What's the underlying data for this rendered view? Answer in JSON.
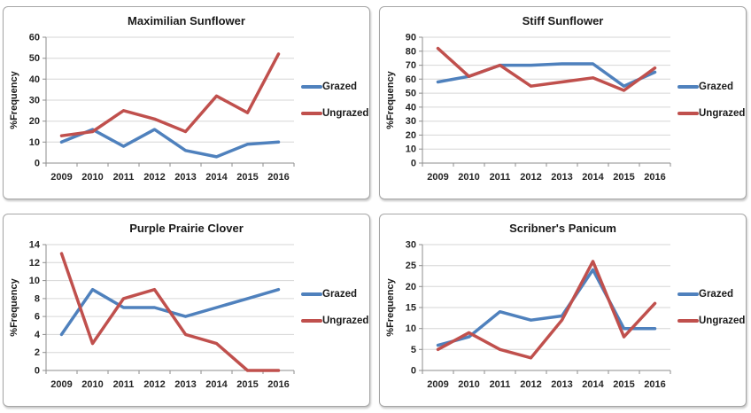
{
  "colors": {
    "grazed": "#4F81BD",
    "ungrazed": "#C0504D",
    "gridline": "#D6D6D6",
    "axis": "#8E8E8E",
    "tick_text": "#262626",
    "title_text": "#1A1A1A",
    "panel_border": "#A6A6A6"
  },
  "chart_data": [
    {
      "type": "line",
      "title": "Maximilian Sunflower",
      "xlabel": "",
      "ylabel": "%Frequency",
      "categories": [
        "2009",
        "2010",
        "2011",
        "2012",
        "2013",
        "2014",
        "2015",
        "2016"
      ],
      "ylim": [
        0,
        60
      ],
      "ystep": 10,
      "grid": true,
      "legend_position": "right",
      "series": [
        {
          "name": "Grazed",
          "color": "#4F81BD",
          "values": [
            10,
            16,
            8,
            16,
            6,
            3,
            9,
            10
          ]
        },
        {
          "name": "Ungrazed",
          "color": "#C0504D",
          "values": [
            13,
            15,
            25,
            21,
            15,
            32,
            24,
            52
          ]
        }
      ]
    },
    {
      "type": "line",
      "title": "Stiff Sunflower",
      "xlabel": "",
      "ylabel": "%Frequency",
      "categories": [
        "2009",
        "2010",
        "2011",
        "2012",
        "2013",
        "2014",
        "2015",
        "2016"
      ],
      "ylim": [
        0,
        90
      ],
      "ystep": 10,
      "grid": true,
      "legend_position": "right",
      "series": [
        {
          "name": "Grazed",
          "color": "#4F81BD",
          "values": [
            58,
            62,
            70,
            70,
            71,
            71,
            55,
            65
          ]
        },
        {
          "name": "Ungrazed",
          "color": "#C0504D",
          "values": [
            82,
            62,
            70,
            55,
            58,
            61,
            52,
            68
          ]
        }
      ]
    },
    {
      "type": "line",
      "title": "Purple Prairie Clover",
      "xlabel": "",
      "ylabel": "%Frequency",
      "categories": [
        "2009",
        "2010",
        "2011",
        "2012",
        "2013",
        "2014",
        "2015",
        "2016"
      ],
      "ylim": [
        0,
        14
      ],
      "ystep": 2,
      "grid": true,
      "legend_position": "right",
      "series": [
        {
          "name": "Grazed",
          "color": "#4F81BD",
          "values": [
            4,
            9,
            7,
            7,
            6,
            7,
            8,
            9
          ]
        },
        {
          "name": "Ungrazed",
          "color": "#C0504D",
          "values": [
            13,
            3,
            8,
            9,
            4,
            3,
            0,
            0
          ]
        }
      ]
    },
    {
      "type": "line",
      "title": "Scribner's Panicum",
      "xlabel": "",
      "ylabel": "%Frequency",
      "categories": [
        "2009",
        "2010",
        "2011",
        "2012",
        "2013",
        "2014",
        "2015",
        "2016"
      ],
      "ylim": [
        0,
        30
      ],
      "ystep": 5,
      "grid": true,
      "legend_position": "right",
      "series": [
        {
          "name": "Grazed",
          "color": "#4F81BD",
          "values": [
            6,
            8,
            14,
            12,
            13,
            24,
            10,
            10
          ]
        },
        {
          "name": "Ungrazed",
          "color": "#C0504D",
          "values": [
            5,
            9,
            5,
            3,
            12,
            26,
            8,
            16
          ]
        }
      ]
    }
  ]
}
